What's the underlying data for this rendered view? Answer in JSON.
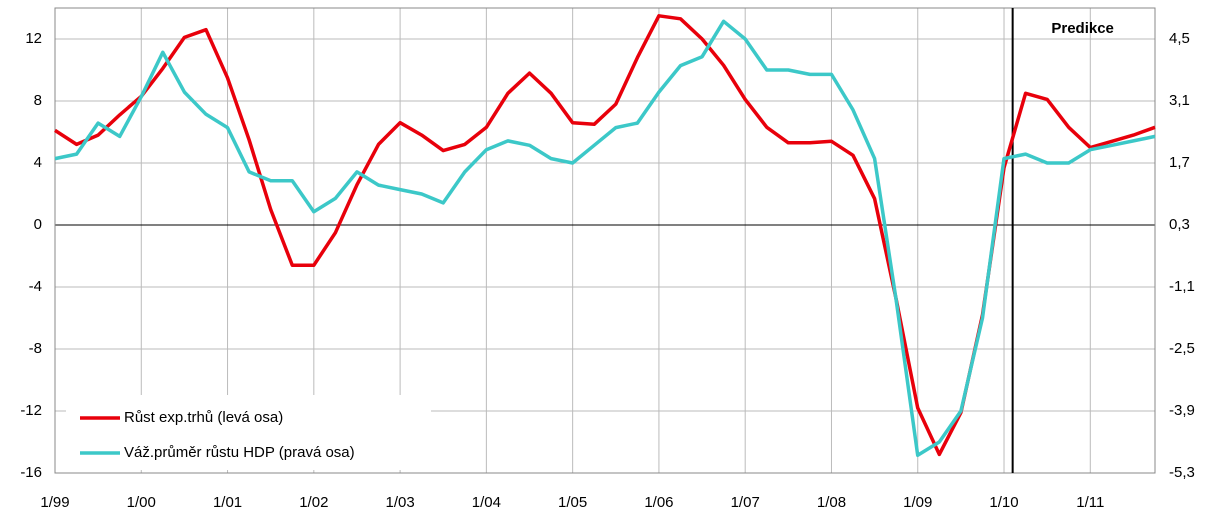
{
  "chart_data": {
    "type": "line",
    "categories": [
      "1/99",
      null,
      null,
      null,
      "1/00",
      null,
      null,
      null,
      "1/01",
      null,
      null,
      null,
      "1/02",
      null,
      null,
      null,
      "1/03",
      null,
      null,
      null,
      "1/04",
      null,
      null,
      null,
      "1/05",
      null,
      null,
      null,
      "1/06",
      null,
      null,
      null,
      "1/07",
      null,
      null,
      null,
      "1/08",
      null,
      null,
      null,
      "1/09",
      null,
      null,
      null,
      "1/10",
      null,
      null,
      null,
      "1/11",
      null,
      null,
      null
    ],
    "series": [
      {
        "name": "Růst exp.trhů (levá osa)",
        "color": "#e8000b",
        "axis": "y",
        "values": [
          6.1,
          5.2,
          5.8,
          7.1,
          8.3,
          10.1,
          12.1,
          12.6,
          9.5,
          5.5,
          1.0,
          -2.6,
          -2.6,
          -0.5,
          2.6,
          5.2,
          6.6,
          5.8,
          4.8,
          5.2,
          6.3,
          8.5,
          9.8,
          8.5,
          6.6,
          6.5,
          7.8,
          10.8,
          13.5,
          13.3,
          12.0,
          10.3,
          8.1,
          6.3,
          5.3,
          5.3,
          5.4,
          4.5,
          1.7,
          -4.8,
          -11.8,
          -14.8,
          -12.1,
          -5.8,
          3.7,
          8.5,
          8.1,
          6.3,
          5.0,
          5.4,
          5.8,
          6.3
        ]
      },
      {
        "name": "Váž.průměr růstu HDP (pravá osa)",
        "color": "#3cc8c8",
        "axis": "y2",
        "values": [
          1.8,
          1.9,
          2.6,
          2.3,
          3.2,
          4.2,
          3.3,
          2.8,
          2.5,
          1.5,
          1.3,
          1.3,
          0.6,
          0.9,
          1.5,
          1.2,
          1.1,
          1.0,
          0.8,
          1.5,
          2.0,
          2.2,
          2.1,
          1.8,
          1.7,
          2.1,
          2.5,
          2.6,
          3.3,
          3.9,
          4.1,
          4.9,
          4.5,
          3.8,
          3.8,
          3.7,
          3.7,
          2.9,
          1.8,
          -1.4,
          -4.9,
          -4.6,
          -3.9,
          -1.8,
          1.8,
          1.9,
          1.7,
          1.7,
          2.0,
          2.1,
          2.2,
          2.3
        ]
      }
    ],
    "ylim": [
      -16,
      14
    ],
    "yticks": [
      -16,
      -12,
      -8,
      -4,
      0,
      4,
      8,
      12
    ],
    "y2lim": [
      -5.3,
      5.2
    ],
    "y2ticks": [
      {
        "value": -5.3,
        "label": "-5,3"
      },
      {
        "value": -3.9,
        "label": "-3,9"
      },
      {
        "value": -2.5,
        "label": "-2,5"
      },
      {
        "value": -1.1,
        "label": "-1,1"
      },
      {
        "value": 0.3,
        "label": "0,3"
      },
      {
        "value": 1.7,
        "label": "1,7"
      },
      {
        "value": 3.1,
        "label": "3,1"
      },
      {
        "value": 4.5,
        "label": "4,5"
      }
    ],
    "annotation": {
      "text": "Predikce",
      "x": 44.4
    },
    "grid": true,
    "legend": "lower left"
  }
}
